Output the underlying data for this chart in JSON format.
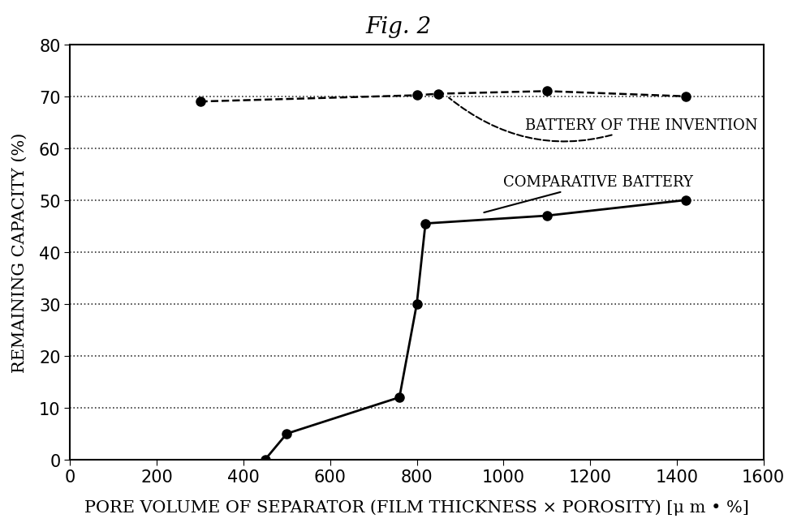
{
  "title": "Fig. 2",
  "xlabel": "PORE VOLUME OF SEPARATOR (FILM THICKNESS × POROSITY) [μ m • %]",
  "ylabel": "REMAINING CAPACITY (%)",
  "xlim": [
    0,
    1600
  ],
  "ylim": [
    0,
    80
  ],
  "xticks": [
    0,
    200,
    400,
    600,
    800,
    1000,
    1200,
    1400,
    1600
  ],
  "yticks": [
    0,
    10,
    20,
    30,
    40,
    50,
    60,
    70,
    80
  ],
  "background_color": "#ffffff",
  "series1_x": [
    300,
    800,
    850,
    1100,
    1420
  ],
  "series1_y": [
    69,
    70.2,
    70.5,
    71,
    70
  ],
  "series2_x": [
    450,
    500,
    760,
    800,
    820,
    1100,
    1420
  ],
  "series2_y": [
    0,
    5,
    12,
    30,
    45.5,
    47,
    50
  ],
  "annotation1_text": "BATTERY OF THE INVENTION",
  "annotation2_text": "COMPARATIVE BATTERY",
  "title_fontsize": 20,
  "label_fontsize": 15,
  "tick_fontsize": 15
}
